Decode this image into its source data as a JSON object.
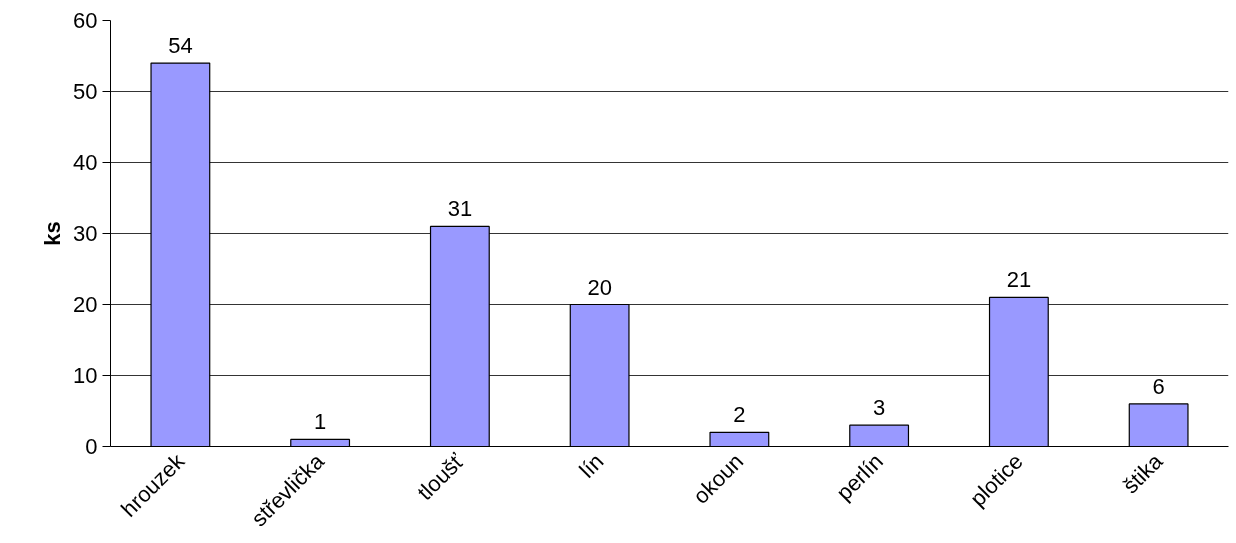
{
  "chart_data": {
    "type": "bar",
    "ylabel": "ks",
    "categories": [
      "hrouzek",
      "střevlička",
      "tloušť",
      "lín",
      "okoun",
      "perlín",
      "plotice",
      "štika"
    ],
    "values": [
      54,
      1,
      31,
      20,
      2,
      3,
      21,
      6
    ],
    "color": "#9999ff",
    "ylim": [
      0,
      60
    ],
    "yticks": [
      0,
      10,
      20,
      30,
      40,
      50,
      60
    ],
    "grid": "y",
    "data_labels": true
  }
}
